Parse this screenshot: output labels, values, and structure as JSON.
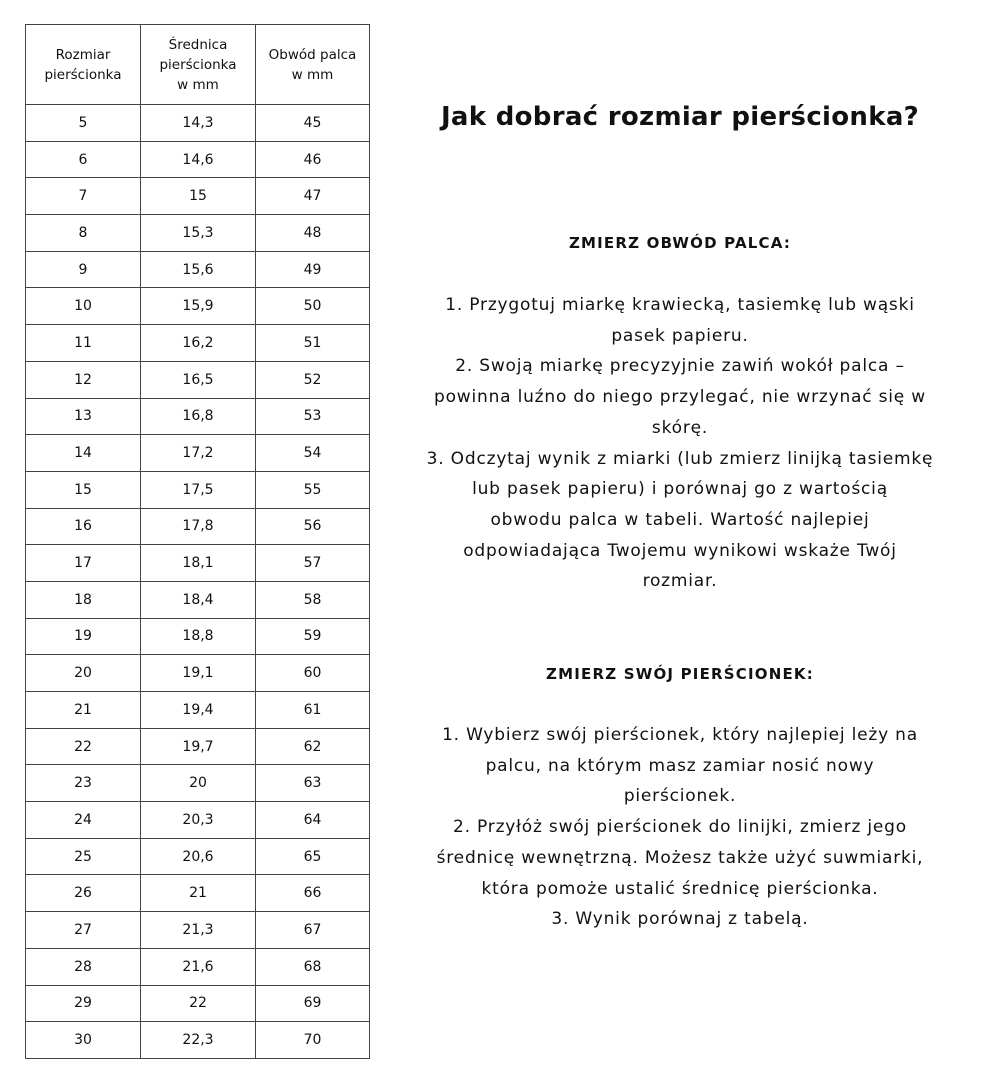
{
  "table": {
    "headers": [
      "Rozmiar pierścionka",
      "Średnica pierścionka w mm",
      "Obwód palca w mm"
    ],
    "header_lines": [
      [
        "Rozmiar",
        "pierścionka"
      ],
      [
        "Średnica",
        "pierścionka",
        "w mm"
      ],
      [
        "Obwód palca",
        "w mm"
      ]
    ],
    "rows": [
      [
        "5",
        "14,3",
        "45"
      ],
      [
        "6",
        "14,6",
        "46"
      ],
      [
        "7",
        "15",
        "47"
      ],
      [
        "8",
        "15,3",
        "48"
      ],
      [
        "9",
        "15,6",
        "49"
      ],
      [
        "10",
        "15,9",
        "50"
      ],
      [
        "11",
        "16,2",
        "51"
      ],
      [
        "12",
        "16,5",
        "52"
      ],
      [
        "13",
        "16,8",
        "53"
      ],
      [
        "14",
        "17,2",
        "54"
      ],
      [
        "15",
        "17,5",
        "55"
      ],
      [
        "16",
        "17,8",
        "56"
      ],
      [
        "17",
        "18,1",
        "57"
      ],
      [
        "18",
        "18,4",
        "58"
      ],
      [
        "19",
        "18,8",
        "59"
      ],
      [
        "20",
        "19,1",
        "60"
      ],
      [
        "21",
        "19,4",
        "61"
      ],
      [
        "22",
        "19,7",
        "62"
      ],
      [
        "23",
        "20",
        "63"
      ],
      [
        "24",
        "20,3",
        "64"
      ],
      [
        "25",
        "20,6",
        "65"
      ],
      [
        "26",
        "21",
        "66"
      ],
      [
        "27",
        "21,3",
        "67"
      ],
      [
        "28",
        "21,6",
        "68"
      ],
      [
        "29",
        "22",
        "69"
      ],
      [
        "30",
        "22,3",
        "70"
      ]
    ]
  },
  "title": "Jak dobrać rozmiar pierścionka?",
  "section1": {
    "heading": "ZMIERZ OBWÓD PALCA:",
    "lines": [
      "1. Przygotuj miarkę krawiecką, tasiemkę lub wąski",
      "pasek papieru.",
      "2. Swoją miarkę precyzyjnie zawiń wokół palca –",
      "powinna luźno do niego przylegać, nie wrzynać się w",
      "skórę.",
      "3. Odczytaj wynik z miarki (lub zmierz linijką tasiemkę",
      "lub pasek papieru) i porównaj go z wartością",
      "obwodu palca w tabeli. Wartość najlepiej",
      "odpowiadająca Twojemu wynikowi wskaże Twój",
      "rozmiar."
    ]
  },
  "section2": {
    "heading": "ZMIERZ SWÓJ PIERŚCIONEK:",
    "lines": [
      "1.  Wybierz swój pierścionek, który najlepiej leży na",
      "palcu, na którym masz zamiar nosić nowy",
      "pierścionek.",
      "2. Przyłóż swój pierścionek do linijki, zmierz jego",
      "średnicę wewnętrzną. Możesz także użyć suwmiarki,",
      "która pomoże ustalić średnicę pierścionka.",
      "3. Wynik porównaj z tabelą."
    ]
  }
}
